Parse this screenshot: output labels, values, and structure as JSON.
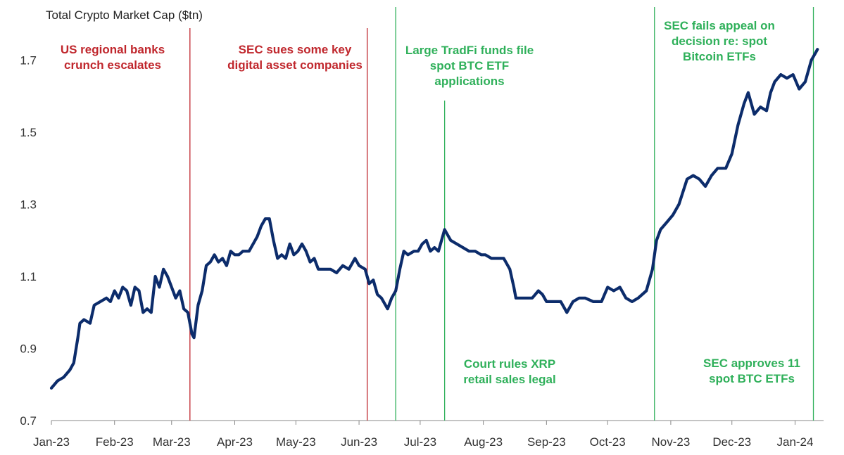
{
  "chart_data": {
    "type": "line",
    "title": "Total Crypto Market Cap ($tn)",
    "xlabel": "",
    "ylabel": "",
    "ylim": [
      0.7,
      1.75
    ],
    "yticks": [
      0.7,
      0.9,
      1.1,
      1.3,
      1.5,
      1.7
    ],
    "ytick_labels": [
      "0.7",
      "0.9",
      "1.1",
      "1.3",
      "1.5",
      "1.7"
    ],
    "x_range": [
      "2023-01-01",
      "2024-01-15"
    ],
    "xticks": [
      "2023-01-01",
      "2023-02-01",
      "2023-03-01",
      "2023-04-01",
      "2023-05-01",
      "2023-06-01",
      "2023-07-01",
      "2023-08-01",
      "2023-09-01",
      "2023-10-01",
      "2023-11-01",
      "2023-12-01",
      "2024-01-01"
    ],
    "xtick_labels": [
      "Jan-23",
      "Feb-23",
      "Mar-23",
      "Apr-23",
      "May-23",
      "Jun-23",
      "Jul-23",
      "Aug-23",
      "Sep-23",
      "Oct-23",
      "Nov-23",
      "Dec-23",
      "Jan-24"
    ],
    "grid": false,
    "series": [
      {
        "color": "#0c2c6b",
        "points": [
          [
            "2023-01-01",
            0.79
          ],
          [
            "2023-01-04",
            0.81
          ],
          [
            "2023-01-07",
            0.82
          ],
          [
            "2023-01-10",
            0.84
          ],
          [
            "2023-01-12",
            0.86
          ],
          [
            "2023-01-14",
            0.93
          ],
          [
            "2023-01-15",
            0.97
          ],
          [
            "2023-01-17",
            0.98
          ],
          [
            "2023-01-20",
            0.97
          ],
          [
            "2023-01-22",
            1.02
          ],
          [
            "2023-01-25",
            1.03
          ],
          [
            "2023-01-28",
            1.04
          ],
          [
            "2023-01-30",
            1.03
          ],
          [
            "2023-02-01",
            1.06
          ],
          [
            "2023-02-03",
            1.04
          ],
          [
            "2023-02-05",
            1.07
          ],
          [
            "2023-02-07",
            1.06
          ],
          [
            "2023-02-09",
            1.02
          ],
          [
            "2023-02-11",
            1.07
          ],
          [
            "2023-02-13",
            1.06
          ],
          [
            "2023-02-15",
            1.0
          ],
          [
            "2023-02-17",
            1.01
          ],
          [
            "2023-02-19",
            1.0
          ],
          [
            "2023-02-21",
            1.1
          ],
          [
            "2023-02-23",
            1.07
          ],
          [
            "2023-02-25",
            1.12
          ],
          [
            "2023-02-27",
            1.1
          ],
          [
            "2023-03-01",
            1.07
          ],
          [
            "2023-03-03",
            1.04
          ],
          [
            "2023-03-05",
            1.06
          ],
          [
            "2023-03-07",
            1.01
          ],
          [
            "2023-03-09",
            1.0
          ],
          [
            "2023-03-11",
            0.94
          ],
          [
            "2023-03-12",
            0.93
          ],
          [
            "2023-03-14",
            1.02
          ],
          [
            "2023-03-16",
            1.06
          ],
          [
            "2023-03-18",
            1.13
          ],
          [
            "2023-03-20",
            1.14
          ],
          [
            "2023-03-22",
            1.16
          ],
          [
            "2023-03-24",
            1.14
          ],
          [
            "2023-03-26",
            1.15
          ],
          [
            "2023-03-28",
            1.13
          ],
          [
            "2023-03-30",
            1.17
          ],
          [
            "2023-04-01",
            1.16
          ],
          [
            "2023-04-03",
            1.16
          ],
          [
            "2023-04-05",
            1.17
          ],
          [
            "2023-04-08",
            1.17
          ],
          [
            "2023-04-10",
            1.19
          ],
          [
            "2023-04-12",
            1.21
          ],
          [
            "2023-04-14",
            1.24
          ],
          [
            "2023-04-16",
            1.26
          ],
          [
            "2023-04-18",
            1.26
          ],
          [
            "2023-04-20",
            1.2
          ],
          [
            "2023-04-22",
            1.15
          ],
          [
            "2023-04-24",
            1.16
          ],
          [
            "2023-04-26",
            1.15
          ],
          [
            "2023-04-28",
            1.19
          ],
          [
            "2023-04-30",
            1.16
          ],
          [
            "2023-05-02",
            1.17
          ],
          [
            "2023-05-04",
            1.19
          ],
          [
            "2023-05-06",
            1.17
          ],
          [
            "2023-05-08",
            1.14
          ],
          [
            "2023-05-10",
            1.15
          ],
          [
            "2023-05-12",
            1.12
          ],
          [
            "2023-05-15",
            1.12
          ],
          [
            "2023-05-18",
            1.12
          ],
          [
            "2023-05-21",
            1.11
          ],
          [
            "2023-05-24",
            1.13
          ],
          [
            "2023-05-27",
            1.12
          ],
          [
            "2023-05-30",
            1.15
          ],
          [
            "2023-06-01",
            1.13
          ],
          [
            "2023-06-04",
            1.12
          ],
          [
            "2023-06-06",
            1.08
          ],
          [
            "2023-06-08",
            1.09
          ],
          [
            "2023-06-10",
            1.05
          ],
          [
            "2023-06-12",
            1.04
          ],
          [
            "2023-06-14",
            1.02
          ],
          [
            "2023-06-15",
            1.01
          ],
          [
            "2023-06-17",
            1.04
          ],
          [
            "2023-06-19",
            1.06
          ],
          [
            "2023-06-21",
            1.12
          ],
          [
            "2023-06-23",
            1.17
          ],
          [
            "2023-06-25",
            1.16
          ],
          [
            "2023-06-28",
            1.17
          ],
          [
            "2023-06-30",
            1.17
          ],
          [
            "2023-07-02",
            1.19
          ],
          [
            "2023-07-04",
            1.2
          ],
          [
            "2023-07-06",
            1.17
          ],
          [
            "2023-07-08",
            1.18
          ],
          [
            "2023-07-10",
            1.17
          ],
          [
            "2023-07-13",
            1.23
          ],
          [
            "2023-07-14",
            1.22
          ],
          [
            "2023-07-16",
            1.2
          ],
          [
            "2023-07-19",
            1.19
          ],
          [
            "2023-07-22",
            1.18
          ],
          [
            "2023-07-25",
            1.17
          ],
          [
            "2023-07-28",
            1.17
          ],
          [
            "2023-07-31",
            1.16
          ],
          [
            "2023-08-02",
            1.16
          ],
          [
            "2023-08-05",
            1.15
          ],
          [
            "2023-08-08",
            1.15
          ],
          [
            "2023-08-11",
            1.15
          ],
          [
            "2023-08-14",
            1.12
          ],
          [
            "2023-08-16",
            1.07
          ],
          [
            "2023-08-17",
            1.04
          ],
          [
            "2023-08-19",
            1.04
          ],
          [
            "2023-08-22",
            1.04
          ],
          [
            "2023-08-25",
            1.04
          ],
          [
            "2023-08-28",
            1.06
          ],
          [
            "2023-08-30",
            1.05
          ],
          [
            "2023-09-01",
            1.03
          ],
          [
            "2023-09-04",
            1.03
          ],
          [
            "2023-09-08",
            1.03
          ],
          [
            "2023-09-11",
            1.0
          ],
          [
            "2023-09-14",
            1.03
          ],
          [
            "2023-09-17",
            1.04
          ],
          [
            "2023-09-20",
            1.04
          ],
          [
            "2023-09-24",
            1.03
          ],
          [
            "2023-09-28",
            1.03
          ],
          [
            "2023-10-01",
            1.07
          ],
          [
            "2023-10-04",
            1.06
          ],
          [
            "2023-10-07",
            1.07
          ],
          [
            "2023-10-10",
            1.04
          ],
          [
            "2023-10-13",
            1.03
          ],
          [
            "2023-10-16",
            1.04
          ],
          [
            "2023-10-20",
            1.06
          ],
          [
            "2023-10-23",
            1.12
          ],
          [
            "2023-10-25",
            1.2
          ],
          [
            "2023-10-27",
            1.23
          ],
          [
            "2023-10-30",
            1.25
          ],
          [
            "2023-11-02",
            1.27
          ],
          [
            "2023-11-05",
            1.3
          ],
          [
            "2023-11-09",
            1.37
          ],
          [
            "2023-11-12",
            1.38
          ],
          [
            "2023-11-15",
            1.37
          ],
          [
            "2023-11-18",
            1.35
          ],
          [
            "2023-11-21",
            1.38
          ],
          [
            "2023-11-24",
            1.4
          ],
          [
            "2023-11-28",
            1.4
          ],
          [
            "2023-12-01",
            1.44
          ],
          [
            "2023-12-04",
            1.52
          ],
          [
            "2023-12-07",
            1.58
          ],
          [
            "2023-12-09",
            1.61
          ],
          [
            "2023-12-12",
            1.55
          ],
          [
            "2023-12-15",
            1.57
          ],
          [
            "2023-12-18",
            1.56
          ],
          [
            "2023-12-20",
            1.61
          ],
          [
            "2023-12-22",
            1.64
          ],
          [
            "2023-12-25",
            1.66
          ],
          [
            "2023-12-28",
            1.65
          ],
          [
            "2023-12-31",
            1.66
          ],
          [
            "2024-01-03",
            1.62
          ],
          [
            "2024-01-06",
            1.64
          ],
          [
            "2024-01-09",
            1.7
          ],
          [
            "2024-01-11",
            1.72
          ],
          [
            "2024-01-12",
            1.73
          ]
        ]
      }
    ],
    "events": [
      {
        "date": "2023-03-10",
        "color": "#c0272d",
        "text": [
          "US regional banks",
          "crunch escalates"
        ]
      },
      {
        "date": "2023-06-05",
        "color": "#c0272d",
        "text": [
          "SEC sues some key",
          "digital asset companies"
        ]
      },
      {
        "date": "2023-06-19",
        "color": "#2fb05a",
        "text": [
          "Large TradFi funds file",
          "spot BTC ETF",
          "applications"
        ]
      },
      {
        "date": "2023-07-13",
        "color": "#2fb05a",
        "text": [
          "Court rules XRP",
          "retail sales legal"
        ]
      },
      {
        "date": "2023-10-24",
        "color": "#2fb05a",
        "text": [
          "SEC fails appeal on",
          "decision re: spot",
          "Bitcoin ETFs"
        ]
      },
      {
        "date": "2024-01-10",
        "color": "#2fb05a",
        "text": [
          "SEC approves 11",
          "spot BTC ETFs"
        ]
      }
    ]
  }
}
